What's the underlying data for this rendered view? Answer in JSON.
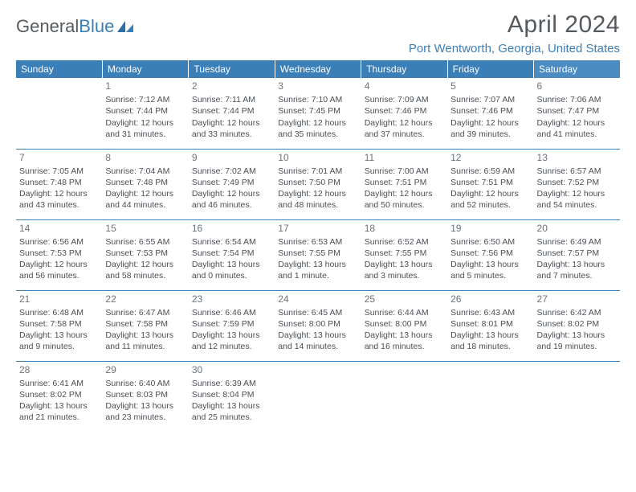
{
  "brand": {
    "name_gray": "General",
    "name_blue": "Blue"
  },
  "title": "April 2024",
  "location": "Port Wentworth, Georgia, United States",
  "colors": {
    "header_bg": "#3b7fb8",
    "header_sat_bg": "#4a8cc2",
    "text": "#4a4f54",
    "daynum": "#6d7378",
    "rule": "#3b7fb8"
  },
  "weekday_labels": [
    "Sunday",
    "Monday",
    "Tuesday",
    "Wednesday",
    "Thursday",
    "Friday",
    "Saturday"
  ],
  "grid": [
    [
      null,
      {
        "n": "1",
        "sr": "7:12 AM",
        "ss": "7:44 PM",
        "dl": "12 hours and 31 minutes."
      },
      {
        "n": "2",
        "sr": "7:11 AM",
        "ss": "7:44 PM",
        "dl": "12 hours and 33 minutes."
      },
      {
        "n": "3",
        "sr": "7:10 AM",
        "ss": "7:45 PM",
        "dl": "12 hours and 35 minutes."
      },
      {
        "n": "4",
        "sr": "7:09 AM",
        "ss": "7:46 PM",
        "dl": "12 hours and 37 minutes."
      },
      {
        "n": "5",
        "sr": "7:07 AM",
        "ss": "7:46 PM",
        "dl": "12 hours and 39 minutes."
      },
      {
        "n": "6",
        "sr": "7:06 AM",
        "ss": "7:47 PM",
        "dl": "12 hours and 41 minutes."
      }
    ],
    [
      {
        "n": "7",
        "sr": "7:05 AM",
        "ss": "7:48 PM",
        "dl": "12 hours and 43 minutes."
      },
      {
        "n": "8",
        "sr": "7:04 AM",
        "ss": "7:48 PM",
        "dl": "12 hours and 44 minutes."
      },
      {
        "n": "9",
        "sr": "7:02 AM",
        "ss": "7:49 PM",
        "dl": "12 hours and 46 minutes."
      },
      {
        "n": "10",
        "sr": "7:01 AM",
        "ss": "7:50 PM",
        "dl": "12 hours and 48 minutes."
      },
      {
        "n": "11",
        "sr": "7:00 AM",
        "ss": "7:51 PM",
        "dl": "12 hours and 50 minutes."
      },
      {
        "n": "12",
        "sr": "6:59 AM",
        "ss": "7:51 PM",
        "dl": "12 hours and 52 minutes."
      },
      {
        "n": "13",
        "sr": "6:57 AM",
        "ss": "7:52 PM",
        "dl": "12 hours and 54 minutes."
      }
    ],
    [
      {
        "n": "14",
        "sr": "6:56 AM",
        "ss": "7:53 PM",
        "dl": "12 hours and 56 minutes."
      },
      {
        "n": "15",
        "sr": "6:55 AM",
        "ss": "7:53 PM",
        "dl": "12 hours and 58 minutes."
      },
      {
        "n": "16",
        "sr": "6:54 AM",
        "ss": "7:54 PM",
        "dl": "13 hours and 0 minutes."
      },
      {
        "n": "17",
        "sr": "6:53 AM",
        "ss": "7:55 PM",
        "dl": "13 hours and 1 minute."
      },
      {
        "n": "18",
        "sr": "6:52 AM",
        "ss": "7:55 PM",
        "dl": "13 hours and 3 minutes."
      },
      {
        "n": "19",
        "sr": "6:50 AM",
        "ss": "7:56 PM",
        "dl": "13 hours and 5 minutes."
      },
      {
        "n": "20",
        "sr": "6:49 AM",
        "ss": "7:57 PM",
        "dl": "13 hours and 7 minutes."
      }
    ],
    [
      {
        "n": "21",
        "sr": "6:48 AM",
        "ss": "7:58 PM",
        "dl": "13 hours and 9 minutes."
      },
      {
        "n": "22",
        "sr": "6:47 AM",
        "ss": "7:58 PM",
        "dl": "13 hours and 11 minutes."
      },
      {
        "n": "23",
        "sr": "6:46 AM",
        "ss": "7:59 PM",
        "dl": "13 hours and 12 minutes."
      },
      {
        "n": "24",
        "sr": "6:45 AM",
        "ss": "8:00 PM",
        "dl": "13 hours and 14 minutes."
      },
      {
        "n": "25",
        "sr": "6:44 AM",
        "ss": "8:00 PM",
        "dl": "13 hours and 16 minutes."
      },
      {
        "n": "26",
        "sr": "6:43 AM",
        "ss": "8:01 PM",
        "dl": "13 hours and 18 minutes."
      },
      {
        "n": "27",
        "sr": "6:42 AM",
        "ss": "8:02 PM",
        "dl": "13 hours and 19 minutes."
      }
    ],
    [
      {
        "n": "28",
        "sr": "6:41 AM",
        "ss": "8:02 PM",
        "dl": "13 hours and 21 minutes."
      },
      {
        "n": "29",
        "sr": "6:40 AM",
        "ss": "8:03 PM",
        "dl": "13 hours and 23 minutes."
      },
      {
        "n": "30",
        "sr": "6:39 AM",
        "ss": "8:04 PM",
        "dl": "13 hours and 25 minutes."
      },
      null,
      null,
      null,
      null
    ]
  ],
  "labels": {
    "sunrise": "Sunrise:",
    "sunset": "Sunset:",
    "daylight": "Daylight:"
  }
}
